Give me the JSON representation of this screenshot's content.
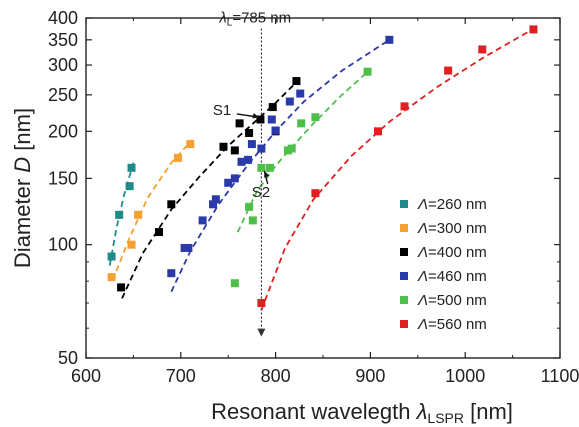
{
  "chart_data": {
    "type": "scatter",
    "xlabel_main": "Resonant wavelegth ",
    "xlabel_sym": "λ",
    "xlabel_sub": "LSPR",
    "xlabel_unit": " [nm]",
    "ylabel_main": "Diameter ",
    "ylabel_sym": "D",
    "ylabel_unit": " [nm]",
    "xlim": [
      600,
      1100
    ],
    "ylim": [
      50,
      400
    ],
    "yscale": "log",
    "xticks": [
      600,
      700,
      800,
      900,
      1000,
      1100
    ],
    "yticks": [
      50,
      100,
      150,
      200,
      250,
      300,
      350,
      400
    ],
    "grid": false,
    "legend_position": "lower-right",
    "vline": {
      "x": 785,
      "label_sym": "λ",
      "label_sub": "L",
      "label_text": "=785 nm",
      "y_top": 375,
      "y_bottom": 57
    },
    "annotations": [
      {
        "text": "S1",
        "x": 786,
        "y": 214,
        "tx": 757,
        "ty": 228
      },
      {
        "text": "S2",
        "x": 785,
        "y": 160,
        "tx": 798,
        "ty": 138
      }
    ],
    "series": [
      {
        "name": "Λ=260 nm",
        "color": "#1f8a8a",
        "x": [
          627,
          635,
          646,
          648
        ],
        "y": [
          93,
          120,
          143,
          160
        ],
        "fit_x": [
          625,
          632,
          640,
          650
        ],
        "fit_y": [
          88,
          110,
          135,
          165
        ]
      },
      {
        "name": "Λ=300 nm",
        "color": "#f5a030",
        "x": [
          627,
          648,
          655,
          697,
          710
        ],
        "y": [
          82,
          100,
          120,
          170,
          185
        ],
        "fit_x": [
          632,
          645,
          665,
          690,
          712
        ],
        "fit_y": [
          85,
          103,
          133,
          165,
          190
        ]
      },
      {
        "name": "Λ=400 nm",
        "color": "#000000",
        "x": [
          637,
          677,
          690,
          745,
          757,
          762,
          772,
          784,
          797,
          800,
          822
        ],
        "y": [
          77,
          108,
          128,
          182,
          178,
          210,
          198,
          215,
          232,
          200,
          272
        ],
        "fit_x": [
          638,
          660,
          690,
          720,
          750,
          780,
          800,
          825
        ],
        "fit_y": [
          72,
          95,
          124,
          152,
          183,
          214,
          238,
          275
        ]
      },
      {
        "name": "Λ=460 nm",
        "color": "#2a3aaa",
        "x": [
          690,
          704,
          708,
          723,
          734,
          737,
          750,
          757,
          764,
          771,
          775,
          785,
          796,
          800,
          815,
          826,
          920
        ],
        "y": [
          84,
          98,
          98,
          116,
          128,
          132,
          146,
          150,
          166,
          168,
          185,
          180,
          215,
          201,
          240,
          252,
          350
        ],
        "fit_x": [
          690,
          710,
          740,
          770,
          800,
          830,
          870,
          920
        ],
        "fit_y": [
          75,
          96,
          128,
          162,
          200,
          240,
          290,
          350
        ]
      },
      {
        "name": "Λ=500 nm",
        "color": "#4ec04a",
        "x": [
          757,
          772,
          776,
          785,
          794,
          813,
          817,
          827,
          842,
          897
        ],
        "y": [
          79,
          126,
          116,
          160,
          160,
          178,
          180,
          210,
          218,
          288
        ],
        "fit_x": [
          760,
          780,
          800,
          820,
          840,
          870,
          900
        ],
        "fit_y": [
          108,
          138,
          162,
          185,
          210,
          250,
          292
        ]
      },
      {
        "name": "Λ=560 nm",
        "color": "#e02020",
        "x": [
          785,
          842,
          908,
          936,
          982,
          1018,
          1072
        ],
        "y": [
          70,
          137,
          200,
          233,
          290,
          330,
          373
        ],
        "fit_x": [
          785,
          810,
          840,
          880,
          920,
          970,
          1020,
          1070
        ],
        "fit_y": [
          67,
          98,
          132,
          172,
          212,
          262,
          315,
          372
        ]
      }
    ]
  }
}
